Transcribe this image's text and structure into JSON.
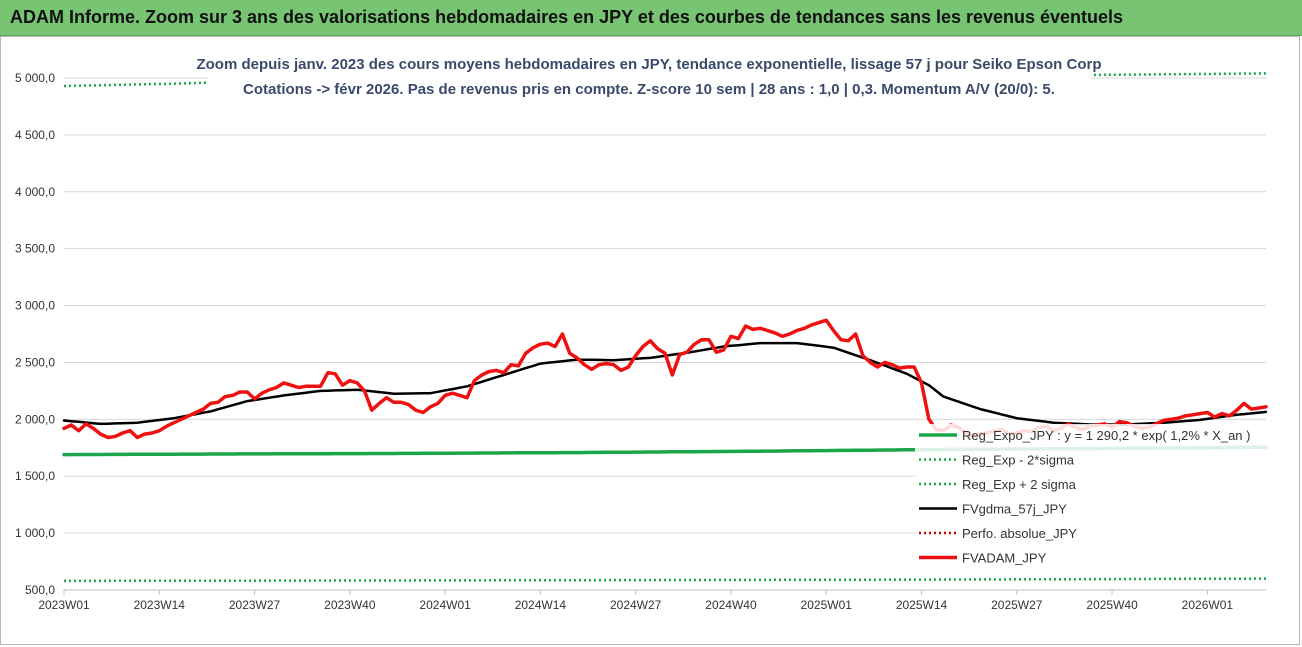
{
  "banner": {
    "title": "ADAM Informe. Zoom sur 3 ans des valorisations hebdomadaires en JPY et des courbes de tendances sans les revenus éventuels",
    "color": "#77c472"
  },
  "chart_data": {
    "type": "line",
    "title": "Zoom depuis janv. 2023 des cours moyens hebdomadaires en JPY, tendance exponentielle, lissage 57 j pour Seiko Epson Corp",
    "subtitle": "Cotations -> févr 2026.  Pas de revenus pris en compte. Z-score 10 sem | 28 ans : 1,0 | 0,3. Momentum A/V (20/0): 5.",
    "xlabel": "",
    "ylabel": "",
    "ylim": [
      500,
      5000
    ],
    "yticks": [
      "5 000,0",
      "4 500,0",
      "4 000,0",
      "3 500,0",
      "3 000,0",
      "2 500,0",
      "2 000,0",
      "1 500,0",
      "1 000,0",
      "500,0"
    ],
    "ytick_values": [
      5000,
      4500,
      4000,
      3500,
      3000,
      2500,
      2000,
      1500,
      1000,
      500
    ],
    "xticks": [
      "2023W01",
      "2023W14",
      "2023W27",
      "2023W40",
      "2024W01",
      "2024W14",
      "2024W27",
      "2024W40",
      "2025W01",
      "2025W14",
      "2025W27",
      "2025W40",
      "2026W01"
    ],
    "xtick_index": [
      0,
      13,
      26,
      39,
      52,
      65,
      78,
      91,
      104,
      117,
      130,
      143,
      156
    ],
    "n_points": 165,
    "grid": true,
    "legend_position": "lower-right",
    "series": [
      {
        "name": "Reg_Expo_JPY : y = 1 290,2 * exp( 1,2% * X_an )",
        "color": "#1aa64a",
        "style": "solid-thick",
        "keypoints": [
          [
            0,
            1690
          ],
          [
            20,
            1695
          ],
          [
            45,
            1700
          ],
          [
            70,
            1708
          ],
          [
            95,
            1720
          ],
          [
            120,
            1735
          ],
          [
            145,
            1745
          ],
          [
            164,
            1755
          ]
        ]
      },
      {
        "name": "Reg_Exp - 2*sigma",
        "color": "#1aa64a",
        "style": "dotted",
        "keypoints": [
          [
            0,
            580
          ],
          [
            60,
            585
          ],
          [
            120,
            592
          ],
          [
            164,
            600
          ]
        ]
      },
      {
        "name": "Reg_Exp + 2 sigma",
        "color": "#1aa64a",
        "style": "dotted",
        "keypoints": [
          [
            0,
            4930
          ],
          [
            15,
            4950
          ],
          [
            20,
            4960
          ],
          [
            164,
            5040
          ]
        ]
      },
      {
        "name": "FVgdma_57j_JPY",
        "color": "#000000",
        "style": "solid",
        "keypoints": [
          [
            0,
            1990
          ],
          [
            5,
            1960
          ],
          [
            10,
            1970
          ],
          [
            15,
            2010
          ],
          [
            20,
            2070
          ],
          [
            25,
            2160
          ],
          [
            30,
            2210
          ],
          [
            35,
            2250
          ],
          [
            40,
            2260
          ],
          [
            45,
            2225
          ],
          [
            50,
            2230
          ],
          [
            55,
            2290
          ],
          [
            60,
            2390
          ],
          [
            65,
            2490
          ],
          [
            70,
            2525
          ],
          [
            75,
            2520
          ],
          [
            80,
            2540
          ],
          [
            85,
            2585
          ],
          [
            90,
            2640
          ],
          [
            95,
            2670
          ],
          [
            100,
            2670
          ],
          [
            105,
            2630
          ],
          [
            110,
            2520
          ],
          [
            115,
            2400
          ],
          [
            118,
            2300
          ],
          [
            120,
            2200
          ],
          [
            125,
            2090
          ],
          [
            130,
            2010
          ],
          [
            135,
            1970
          ],
          [
            140,
            1955
          ],
          [
            145,
            1955
          ],
          [
            150,
            1970
          ],
          [
            155,
            1995
          ],
          [
            160,
            2040
          ],
          [
            164,
            2065
          ]
        ]
      },
      {
        "name": "Perfo. absolue_JPY",
        "color": "#cc0000",
        "style": "dotted",
        "keypoints": []
      },
      {
        "name": "FVADAM_JPY",
        "color": "#ee1111",
        "style": "solid-thick",
        "keypoints": [
          [
            0,
            1920
          ],
          [
            1,
            1950
          ],
          [
            2,
            1900
          ],
          [
            3,
            1960
          ],
          [
            4,
            1920
          ],
          [
            5,
            1870
          ],
          [
            6,
            1840
          ],
          [
            7,
            1850
          ],
          [
            8,
            1880
          ],
          [
            9,
            1900
          ],
          [
            10,
            1840
          ],
          [
            11,
            1870
          ],
          [
            12,
            1880
          ],
          [
            13,
            1900
          ],
          [
            14,
            1940
          ],
          [
            15,
            1970
          ],
          [
            16,
            2000
          ],
          [
            17,
            2030
          ],
          [
            18,
            2060
          ],
          [
            19,
            2090
          ],
          [
            20,
            2140
          ],
          [
            21,
            2150
          ],
          [
            22,
            2200
          ],
          [
            23,
            2210
          ],
          [
            24,
            2240
          ],
          [
            25,
            2240
          ],
          [
            26,
            2180
          ],
          [
            27,
            2230
          ],
          [
            28,
            2260
          ],
          [
            29,
            2280
          ],
          [
            30,
            2320
          ],
          [
            31,
            2300
          ],
          [
            32,
            2280
          ],
          [
            33,
            2290
          ],
          [
            34,
            2290
          ],
          [
            35,
            2290
          ],
          [
            36,
            2410
          ],
          [
            37,
            2400
          ],
          [
            38,
            2300
          ],
          [
            39,
            2340
          ],
          [
            40,
            2320
          ],
          [
            41,
            2250
          ],
          [
            42,
            2080
          ],
          [
            43,
            2140
          ],
          [
            44,
            2190
          ],
          [
            45,
            2150
          ],
          [
            46,
            2150
          ],
          [
            47,
            2130
          ],
          [
            48,
            2080
          ],
          [
            49,
            2060
          ],
          [
            50,
            2110
          ],
          [
            51,
            2140
          ],
          [
            52,
            2210
          ],
          [
            53,
            2230
          ],
          [
            54,
            2210
          ],
          [
            55,
            2190
          ],
          [
            56,
            2340
          ],
          [
            57,
            2390
          ],
          [
            58,
            2420
          ],
          [
            59,
            2430
          ],
          [
            60,
            2410
          ],
          [
            61,
            2480
          ],
          [
            62,
            2470
          ],
          [
            63,
            2580
          ],
          [
            64,
            2630
          ],
          [
            65,
            2660
          ],
          [
            66,
            2670
          ],
          [
            67,
            2640
          ],
          [
            68,
            2750
          ],
          [
            69,
            2580
          ],
          [
            70,
            2540
          ],
          [
            71,
            2480
          ],
          [
            72,
            2440
          ],
          [
            73,
            2480
          ],
          [
            74,
            2490
          ],
          [
            75,
            2480
          ],
          [
            76,
            2430
          ],
          [
            77,
            2460
          ],
          [
            78,
            2560
          ],
          [
            79,
            2640
          ],
          [
            80,
            2690
          ],
          [
            81,
            2620
          ],
          [
            82,
            2580
          ],
          [
            83,
            2390
          ],
          [
            84,
            2570
          ],
          [
            85,
            2590
          ],
          [
            86,
            2660
          ],
          [
            87,
            2700
          ],
          [
            88,
            2700
          ],
          [
            89,
            2590
          ],
          [
            90,
            2610
          ],
          [
            91,
            2730
          ],
          [
            92,
            2710
          ],
          [
            93,
            2820
          ],
          [
            94,
            2790
          ],
          [
            95,
            2800
          ],
          [
            96,
            2780
          ],
          [
            97,
            2760
          ],
          [
            98,
            2730
          ],
          [
            99,
            2750
          ],
          [
            100,
            2780
          ],
          [
            101,
            2800
          ],
          [
            102,
            2830
          ],
          [
            103,
            2850
          ],
          [
            104,
            2870
          ],
          [
            105,
            2780
          ],
          [
            106,
            2700
          ],
          [
            107,
            2690
          ],
          [
            108,
            2750
          ],
          [
            109,
            2560
          ],
          [
            110,
            2500
          ],
          [
            111,
            2460
          ],
          [
            112,
            2500
          ],
          [
            113,
            2480
          ],
          [
            114,
            2450
          ],
          [
            115,
            2460
          ],
          [
            116,
            2460
          ],
          [
            117,
            2320
          ],
          [
            118,
            2000
          ],
          [
            119,
            1910
          ],
          [
            120,
            1900
          ],
          [
            121,
            1950
          ],
          [
            122,
            1930
          ],
          [
            123,
            1880
          ],
          [
            124,
            1850
          ],
          [
            125,
            1870
          ],
          [
            126,
            1880
          ],
          [
            127,
            1900
          ],
          [
            128,
            1910
          ],
          [
            129,
            1870
          ],
          [
            130,
            1880
          ],
          [
            131,
            1900
          ],
          [
            132,
            1890
          ],
          [
            133,
            1930
          ],
          [
            134,
            1940
          ],
          [
            135,
            1900
          ],
          [
            136,
            1920
          ],
          [
            137,
            1960
          ],
          [
            138,
            1930
          ],
          [
            139,
            1910
          ],
          [
            140,
            1940
          ],
          [
            141,
            1950
          ],
          [
            142,
            1960
          ],
          [
            143,
            1930
          ],
          [
            144,
            1980
          ],
          [
            145,
            1970
          ],
          [
            146,
            1940
          ],
          [
            147,
            1920
          ],
          [
            148,
            1930
          ],
          [
            149,
            1960
          ],
          [
            150,
            1990
          ],
          [
            151,
            2000
          ],
          [
            152,
            2010
          ],
          [
            153,
            2030
          ],
          [
            154,
            2040
          ],
          [
            155,
            2050
          ],
          [
            156,
            2060
          ],
          [
            157,
            2020
          ],
          [
            158,
            2050
          ],
          [
            159,
            2030
          ],
          [
            160,
            2080
          ],
          [
            161,
            2140
          ],
          [
            162,
            2090
          ],
          [
            163,
            2100
          ],
          [
            164,
            2110
          ]
        ]
      }
    ]
  }
}
